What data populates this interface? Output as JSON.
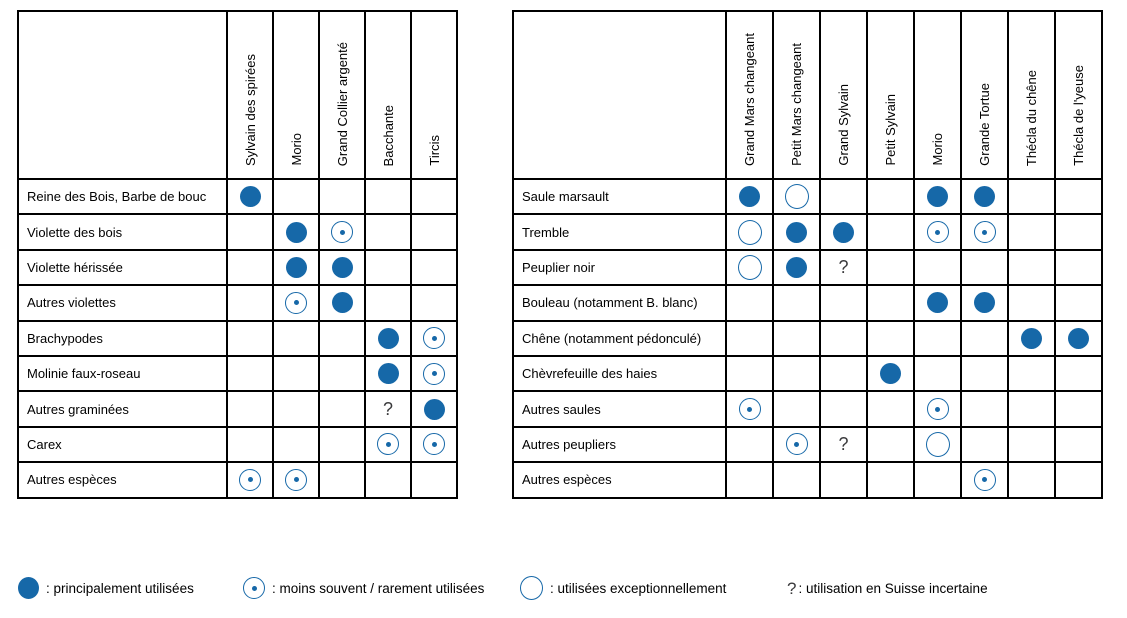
{
  "colors": {
    "accent": "#1668a8",
    "grid": "#000000",
    "text": "#000000",
    "question_mark": "#3a3a3c",
    "background": "#ffffff"
  },
  "legend": {
    "items": [
      {
        "symbol": "filled-circle",
        "label": ": principalement utilisées"
      },
      {
        "symbol": "dot-circle",
        "label": ": moins souvent / rarement utilisées"
      },
      {
        "symbol": "empty-circle",
        "label": ": utilisées exceptionnellement"
      },
      {
        "symbol": "question-mark",
        "symbol_text": "?",
        "label": ": utilisation en Suisse incertaine"
      }
    ]
  },
  "chart_data": {
    "type": "table",
    "question_char": "?",
    "symbol_meanings": {
      "filled": "principalement utilisées",
      "dot": "moins souvent / rarement utilisées",
      "empty": "utilisées exceptionnellement",
      "question": "utilisation en Suisse incertaine"
    },
    "tables": [
      {
        "columns": [
          "Sylvain des spirées",
          "Morio",
          "Grand Collier argenté",
          "Bacchante",
          "Tircis"
        ],
        "rows": [
          {
            "label": "Reine des Bois, Barbe de bouc",
            "cells": [
              "filled",
              "",
              "",
              "",
              ""
            ]
          },
          {
            "label": "Violette des bois",
            "cells": [
              "",
              "filled",
              "dot",
              "",
              ""
            ]
          },
          {
            "label": "Violette hérissée",
            "cells": [
              "",
              "filled",
              "filled",
              "",
              ""
            ]
          },
          {
            "label": "Autres violettes",
            "cells": [
              "",
              "dot",
              "filled",
              "",
              ""
            ]
          },
          {
            "label": "Brachypodes",
            "cells": [
              "",
              "",
              "",
              "filled",
              "dot"
            ]
          },
          {
            "label": "Molinie faux-roseau",
            "cells": [
              "",
              "",
              "",
              "filled",
              "dot"
            ]
          },
          {
            "label": "Autres graminées",
            "cells": [
              "",
              "",
              "",
              "question",
              "filled"
            ]
          },
          {
            "label": "Carex",
            "cells": [
              "",
              "",
              "",
              "dot",
              "dot"
            ]
          },
          {
            "label": "Autres espèces",
            "cells": [
              "dot",
              "dot",
              "",
              "",
              ""
            ]
          }
        ]
      },
      {
        "columns": [
          "Grand Mars changeant",
          "Petit Mars changeant",
          "Grand Sylvain",
          "Petit Sylvain",
          "Morio",
          "Grande Tortue",
          "Thécla du chêne",
          "Thécla de l'yeuse"
        ],
        "rows": [
          {
            "label": "Saule marsault",
            "cells": [
              "filled",
              "empty",
              "",
              "",
              "filled",
              "filled",
              "",
              ""
            ]
          },
          {
            "label": "Tremble",
            "cells": [
              "empty",
              "filled",
              "filled",
              "",
              "dot",
              "dot",
              "",
              ""
            ]
          },
          {
            "label": "Peuplier noir",
            "cells": [
              "empty",
              "filled",
              "question",
              "",
              "",
              "",
              "",
              ""
            ]
          },
          {
            "label": "Bouleau (notamment B. blanc)",
            "cells": [
              "",
              "",
              "",
              "",
              "filled",
              "filled",
              "",
              ""
            ]
          },
          {
            "label": "Chêne (notamment pédonculé)",
            "cells": [
              "",
              "",
              "",
              "",
              "",
              "",
              "filled",
              "filled"
            ]
          },
          {
            "label": "Chèvrefeuille des haies",
            "cells": [
              "",
              "",
              "",
              "filled",
              "",
              "",
              "",
              ""
            ]
          },
          {
            "label": "Autres saules",
            "cells": [
              "dot",
              "",
              "",
              "",
              "dot",
              "",
              "",
              ""
            ]
          },
          {
            "label": "Autres peupliers",
            "cells": [
              "",
              "dot",
              "question",
              "",
              "empty",
              "",
              "",
              ""
            ]
          },
          {
            "label": "Autres espèces",
            "cells": [
              "",
              "",
              "",
              "",
              "",
              "dot",
              "",
              ""
            ]
          }
        ]
      }
    ]
  }
}
